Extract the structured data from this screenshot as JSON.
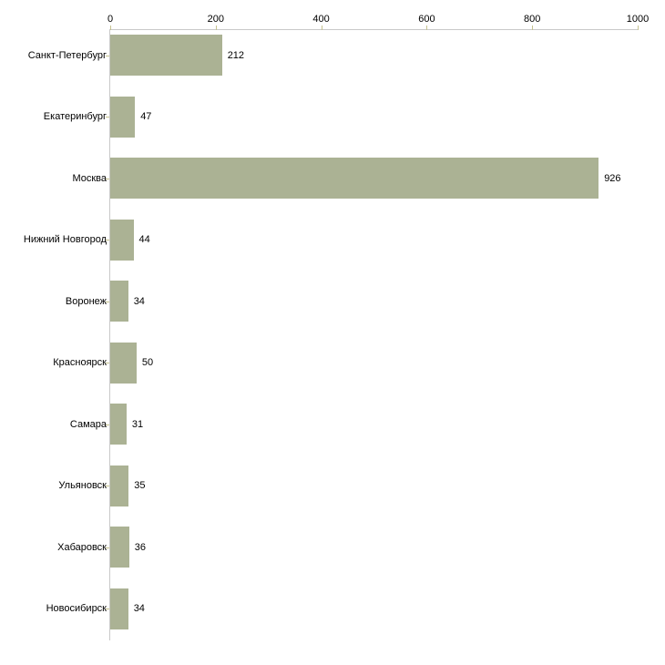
{
  "chart_data": {
    "type": "bar",
    "orientation": "horizontal",
    "title": "",
    "xlabel": "",
    "ylabel": "",
    "categories": [
      "Санкт-Петербург",
      "Екатеринбург",
      "Москва",
      "Нижний Новгород",
      "Воронеж",
      "Красноярск",
      "Самара",
      "Ульяновск",
      "Хабаровск",
      "Новосибирск"
    ],
    "values": [
      212,
      47,
      926,
      44,
      34,
      50,
      31,
      35,
      36,
      34
    ],
    "value_labels": [
      "212",
      "47",
      "926",
      "44",
      "34",
      "50",
      "31",
      "35",
      "36",
      "34"
    ],
    "xlim": [
      0,
      1000
    ],
    "x_ticks": [
      0,
      200,
      400,
      600,
      800,
      1000
    ],
    "x_tick_labels": [
      "0",
      "200",
      "400",
      "600",
      "800",
      "1000"
    ],
    "grid": false,
    "legend": "none",
    "axis_position": "top-left",
    "colors": {
      "bar_fill": "#abb294",
      "axis_line": "#c9c9c9",
      "tick_mark": "#c6c38f",
      "text": "#000000",
      "background": "#ffffff"
    }
  }
}
